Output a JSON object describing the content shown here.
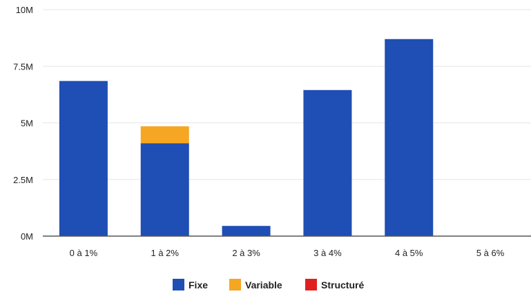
{
  "chart_data": {
    "type": "bar",
    "stacked": true,
    "categories": [
      "0 à 1%",
      "1 à 2%",
      "2 à 3%",
      "3 à 4%",
      "4 à 5%",
      "5 à 6%"
    ],
    "series": [
      {
        "name": "Fixe",
        "color": "#1f4eb4",
        "values": [
          6.85,
          4.1,
          0.45,
          6.45,
          8.7,
          0
        ]
      },
      {
        "name": "Variable",
        "color": "#f5a623",
        "values": [
          0,
          0.75,
          0,
          0,
          0,
          0
        ]
      },
      {
        "name": "Structuré",
        "color": "#e02020",
        "values": [
          0,
          0,
          0,
          0,
          0,
          0
        ]
      }
    ],
    "y_unit": "M",
    "ylim": [
      0,
      10
    ],
    "yticks": [
      {
        "value": 0,
        "label": "0M"
      },
      {
        "value": 2.5,
        "label": "2.5M"
      },
      {
        "value": 5,
        "label": "5M"
      },
      {
        "value": 7.5,
        "label": "7.5M"
      },
      {
        "value": 10,
        "label": "10M"
      }
    ],
    "grid": true,
    "legend_position": "bottom"
  }
}
